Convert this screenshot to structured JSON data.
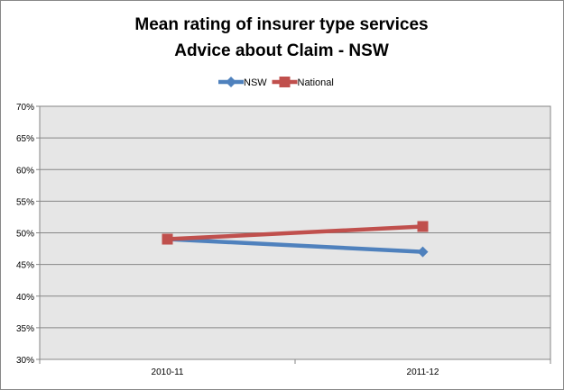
{
  "chart_data": {
    "type": "line",
    "title": [
      "Mean rating of insurer type services",
      "Advice about Claim - NSW"
    ],
    "categories": [
      "2010-11",
      "2011-12"
    ],
    "series": [
      {
        "name": "NSW",
        "values": [
          49,
          47
        ],
        "color": "#4f81bd",
        "marker": "diamond"
      },
      {
        "name": "National",
        "values": [
          49,
          51
        ],
        "color": "#c0504d",
        "marker": "square"
      }
    ],
    "ylim": [
      30,
      70
    ],
    "yticks": [
      30,
      35,
      40,
      45,
      50,
      55,
      60,
      65,
      70
    ],
    "ytick_format": "percent",
    "grid": true,
    "legend": "top",
    "plot_background": "#e6e6e6",
    "xlabel": "",
    "ylabel": ""
  }
}
